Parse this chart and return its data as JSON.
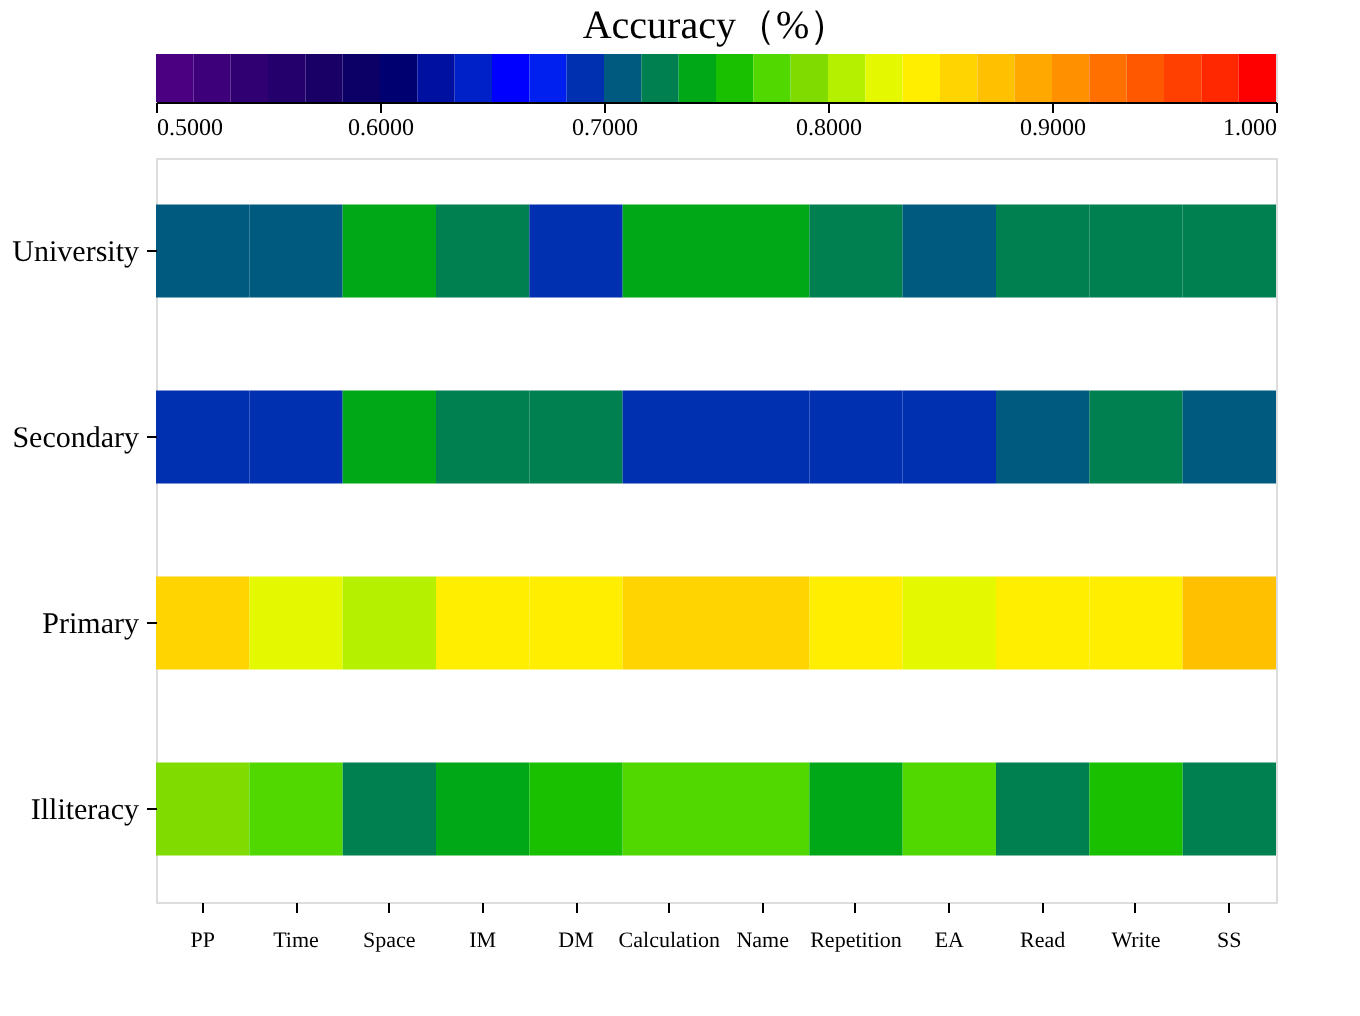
{
  "chart_data": {
    "type": "heatmap",
    "clabel": "Accuracy（%）",
    "categories": [
      "PP",
      "Time",
      "Space",
      "IM",
      "DM",
      "Calculation",
      "Name",
      "Repetition",
      "EA",
      "Read",
      "Write",
      "SS"
    ],
    "y_categories": [
      "University",
      "Secondary",
      "Primary",
      "Illiteracy"
    ],
    "cells": [
      [
        0.708,
        0.708,
        0.742,
        0.725,
        0.692,
        0.742,
        0.742,
        0.725,
        0.708,
        0.725,
        0.725,
        0.725
      ],
      [
        0.692,
        0.692,
        0.742,
        0.725,
        0.725,
        0.692,
        0.692,
        0.692,
        0.692,
        0.708,
        0.725,
        0.708
      ],
      [
        0.858,
        0.825,
        0.808,
        0.842,
        0.842,
        0.858,
        0.858,
        0.842,
        0.825,
        0.842,
        0.842,
        0.875
      ],
      [
        0.792,
        0.775,
        0.725,
        0.742,
        0.758,
        0.775,
        0.775,
        0.742,
        0.775,
        0.725,
        0.758,
        0.725
      ]
    ],
    "clim": [
      0.5,
      1.0
    ],
    "cticks": [
      {
        "value": 0.5,
        "label": "0.5000"
      },
      {
        "value": 0.6,
        "label": "0.6000"
      },
      {
        "value": 0.7,
        "label": "0.7000"
      },
      {
        "value": 0.8,
        "label": "0.8000"
      },
      {
        "value": 0.9,
        "label": "0.9000"
      },
      {
        "value": 1.0,
        "label": "1.000"
      }
    ]
  }
}
